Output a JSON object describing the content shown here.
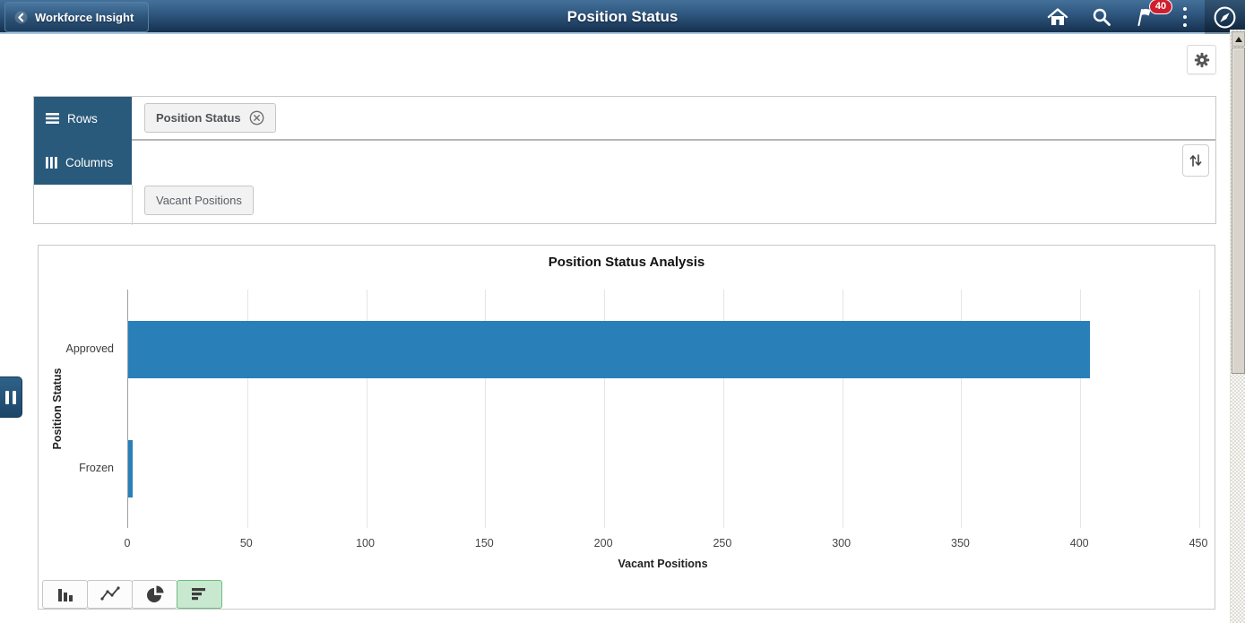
{
  "header": {
    "back_label": "Workforce Insight",
    "title": "Position Status",
    "notification_count": "40"
  },
  "pivot": {
    "rows_label": "Rows",
    "columns_label": "Columns",
    "row_chips": [
      {
        "label": "Position Status",
        "removable": true
      }
    ],
    "column_chips": [
      {
        "label": "Vacant Positions"
      }
    ]
  },
  "chart_data": {
    "type": "bar",
    "orientation": "horizontal",
    "title": "Position Status Analysis",
    "categories": [
      "Approved",
      "Frozen"
    ],
    "values": [
      404,
      2
    ],
    "xlabel": "Vacant Positions",
    "ylabel": "Position Status",
    "xlim": [
      0,
      450
    ],
    "xticks": [
      0,
      50,
      100,
      150,
      200,
      250,
      300,
      350,
      400,
      450
    ],
    "grid": true,
    "legend": false,
    "bar_color": "#2980b9"
  },
  "chart_type_toolbar": {
    "types": [
      "vertical-bar",
      "line",
      "pie",
      "horizontal-bar"
    ],
    "selected": "horizontal-bar"
  },
  "icons": {
    "back": "left-chevron",
    "home": "house",
    "search": "magnifier",
    "notifications": "flag-with-badge",
    "actions": "kebab-dots",
    "navbar": "compass",
    "settings": "gear",
    "rows": "hamburger-lines",
    "columns": "vertical-bars",
    "remove_chip": "circled-x",
    "sort": "up-down-arrows",
    "panel_handle": "pause-bars",
    "scrollbar_up": "triangle-up"
  },
  "colors": {
    "header_top": "#44719a",
    "header_bottom": "#16304e",
    "pivot_tab": "#29597b",
    "bar": "#2980b9",
    "selected_chart_type_bg": "#c9e8d0",
    "selected_chart_type_border": "#6cbd80",
    "badge": "#cf1f2e"
  }
}
